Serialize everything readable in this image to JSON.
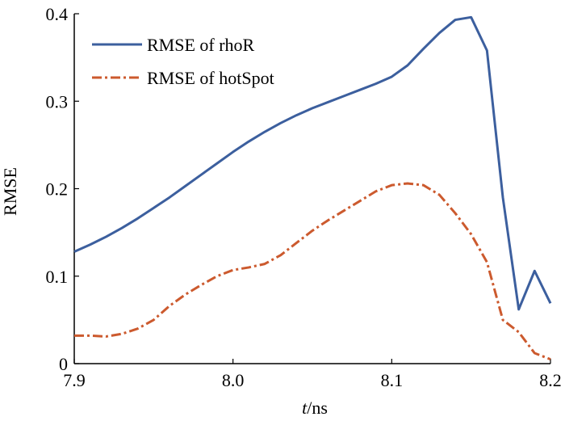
{
  "chart_data": {
    "type": "line",
    "title": "",
    "xlabel": {
      "var": "t",
      "unit": "/ns"
    },
    "ylabel": "RMSE",
    "xlim": [
      7.9,
      8.2
    ],
    "ylim": [
      0,
      0.4
    ],
    "x_ticks": [
      "7.9",
      "8.0",
      "8.1",
      "8.2"
    ],
    "y_ticks": [
      "0",
      "0.1",
      "0.2",
      "0.3",
      "0.4"
    ],
    "grid": false,
    "legend_position": "top-left",
    "series": [
      {
        "name": "RMSE of rhoR",
        "color": "#3c5f9e",
        "style": "solid",
        "x": [
          7.9,
          7.91,
          7.92,
          7.93,
          7.94,
          7.95,
          7.96,
          7.97,
          7.98,
          7.99,
          8.0,
          8.01,
          8.02,
          8.03,
          8.04,
          8.05,
          8.06,
          8.07,
          8.08,
          8.09,
          8.1,
          8.11,
          8.12,
          8.13,
          8.14,
          8.15,
          8.16,
          8.17,
          8.18,
          8.19,
          8.2
        ],
        "values": [
          0.128,
          0.136,
          0.145,
          0.155,
          0.166,
          0.178,
          0.19,
          0.203,
          0.216,
          0.229,
          0.242,
          0.254,
          0.265,
          0.275,
          0.284,
          0.292,
          0.299,
          0.306,
          0.313,
          0.32,
          0.328,
          0.341,
          0.36,
          0.378,
          0.393,
          0.396,
          0.358,
          0.19,
          0.062,
          0.106,
          0.069
        ]
      },
      {
        "name": "RMSE of hotSpot",
        "color": "#cc5a2e",
        "style": "dash-dot",
        "x": [
          7.9,
          7.91,
          7.92,
          7.93,
          7.94,
          7.95,
          7.96,
          7.97,
          7.98,
          7.99,
          8.0,
          8.01,
          8.02,
          8.03,
          8.04,
          8.05,
          8.06,
          8.07,
          8.08,
          8.09,
          8.1,
          8.11,
          8.12,
          8.13,
          8.14,
          8.15,
          8.16,
          8.17,
          8.18,
          8.19,
          8.2
        ],
        "values": [
          0.032,
          0.032,
          0.031,
          0.034,
          0.04,
          0.05,
          0.066,
          0.079,
          0.09,
          0.1,
          0.107,
          0.11,
          0.114,
          0.124,
          0.138,
          0.152,
          0.164,
          0.175,
          0.186,
          0.197,
          0.204,
          0.206,
          0.204,
          0.193,
          0.172,
          0.148,
          0.116,
          0.05,
          0.036,
          0.012,
          0.005
        ]
      }
    ]
  }
}
